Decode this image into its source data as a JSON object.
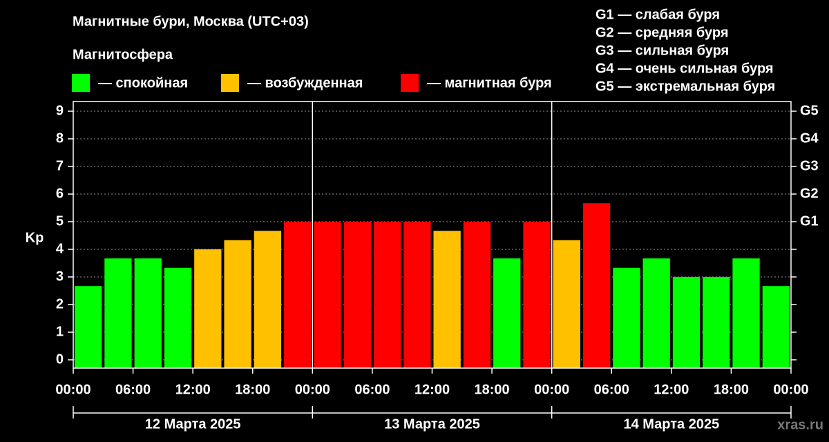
{
  "chart_data": {
    "type": "bar",
    "title": "Магнитные бури, Москва (UTC+03)",
    "subtitle": "Магнитосфера",
    "y_label": "Kp",
    "legend": [
      {
        "color": "#00ff00",
        "label": "— спокойная"
      },
      {
        "color": "#ffc000",
        "label": "— возбужденная"
      },
      {
        "color": "#ff0000",
        "label": "— магнитная буря"
      }
    ],
    "storm_levels": [
      "G1 — слабая буря",
      "G2 — средняя буря",
      "G3 — сильная буря",
      "G4 — очень сильная буря",
      "G5 — экстремальная буря"
    ],
    "x": [
      1.5,
      4.5,
      7.5,
      10.5,
      13.5,
      16.5,
      19.5,
      22.5,
      25.5,
      28.5,
      31.5,
      34.5,
      37.5,
      40.5,
      43.5,
      46.5,
      49.5,
      52.5,
      55.5,
      58.5,
      61.5,
      64.5,
      67.5,
      70.5
    ],
    "values": [
      2.67,
      3.67,
      3.67,
      3.33,
      4.0,
      4.33,
      4.67,
      5.0,
      5.0,
      5.0,
      5.0,
      5.0,
      4.67,
      5.0,
      3.67,
      5.0,
      4.33,
      5.67,
      3.33,
      3.67,
      3.0,
      3.0,
      3.67,
      2.67
    ],
    "colors": [
      "#00ff00",
      "#00ff00",
      "#00ff00",
      "#00ff00",
      "#ffc000",
      "#ffc000",
      "#ffc000",
      "#ff0000",
      "#ff0000",
      "#ff0000",
      "#ff0000",
      "#ff0000",
      "#ffc000",
      "#ff0000",
      "#00ff00",
      "#ff0000",
      "#ffc000",
      "#ff0000",
      "#00ff00",
      "#00ff00",
      "#00ff00",
      "#00ff00",
      "#00ff00",
      "#00ff00"
    ],
    "bar_width": 3,
    "xlim": [
      0,
      72
    ],
    "xticks": [
      {
        "value": 0,
        "label": "00:00"
      },
      {
        "value": 6,
        "label": "06:00"
      },
      {
        "value": 12,
        "label": "12:00"
      },
      {
        "value": 18,
        "label": "18:00"
      },
      {
        "value": 24,
        "label": "00:00"
      },
      {
        "value": 30,
        "label": "06:00"
      },
      {
        "value": 36,
        "label": "12:00"
      },
      {
        "value": 42,
        "label": "18:00"
      },
      {
        "value": 48,
        "label": "00:00"
      },
      {
        "value": 54,
        "label": "06:00"
      },
      {
        "value": 60,
        "label": "12:00"
      },
      {
        "value": 66,
        "label": "18:00"
      },
      {
        "value": 72,
        "label": "00:00"
      }
    ],
    "days": [
      "12 Марта 2025",
      "13 Марта 2025",
      "14 Марта 2025"
    ],
    "ylim": [
      -0.3,
      9.35
    ],
    "yticks": [
      0,
      1,
      2,
      3,
      4,
      5,
      6,
      7,
      8,
      9
    ],
    "y2lim": [
      -0.3,
      9.35
    ],
    "y2ticks": [
      {
        "value": 5,
        "label": "G1"
      },
      {
        "value": 6,
        "label": "G2"
      },
      {
        "value": 7,
        "label": "G3"
      },
      {
        "value": 8,
        "label": "G4"
      },
      {
        "value": 9,
        "label": "G5"
      }
    ],
    "grid": true,
    "source": "xras.ru"
  }
}
